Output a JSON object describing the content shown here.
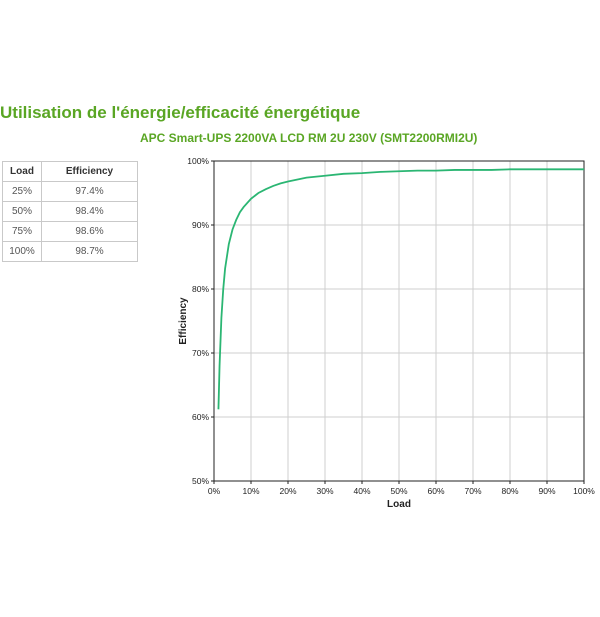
{
  "page": {
    "title": "Utilisation de l'énergie/efficacité énergétique"
  },
  "table": {
    "headers": [
      "Load",
      "Efficiency"
    ],
    "rows": [
      [
        "25%",
        "97.4%"
      ],
      [
        "50%",
        "98.4%"
      ],
      [
        "75%",
        "98.6%"
      ],
      [
        "100%",
        "98.7%"
      ]
    ]
  },
  "chart_data": {
    "type": "line",
    "title": "APC Smart-UPS 2200VA LCD RM 2U 230V (SMT2200RMI2U)",
    "xlabel": "Load",
    "ylabel": "Efficiency",
    "xlim": [
      0,
      100
    ],
    "ylim": [
      50,
      100
    ],
    "x_ticks": [
      "0%",
      "10%",
      "20%",
      "30%",
      "40%",
      "50%",
      "60%",
      "70%",
      "80%",
      "90%",
      "100%"
    ],
    "y_ticks": [
      "50%",
      "60%",
      "70%",
      "80%",
      "90%",
      "100%"
    ],
    "grid": true,
    "line_color": "#2bb673",
    "series": [
      {
        "x": [
          1.2,
          1.5,
          2,
          2.5,
          3,
          4,
          5,
          6,
          7,
          8,
          10,
          12,
          14,
          16,
          18,
          20,
          25,
          30,
          35,
          40,
          45,
          50,
          55,
          60,
          65,
          70,
          75,
          80,
          85,
          90,
          95,
          100
        ],
        "y": [
          61.2,
          68,
          75.5,
          80,
          83.2,
          87,
          89.3,
          90.8,
          92,
          92.8,
          94.1,
          95,
          95.6,
          96.1,
          96.5,
          96.8,
          97.4,
          97.7,
          98,
          98.1,
          98.3,
          98.4,
          98.5,
          98.5,
          98.6,
          98.6,
          98.6,
          98.7,
          98.7,
          98.7,
          98.7,
          98.7
        ]
      }
    ]
  }
}
